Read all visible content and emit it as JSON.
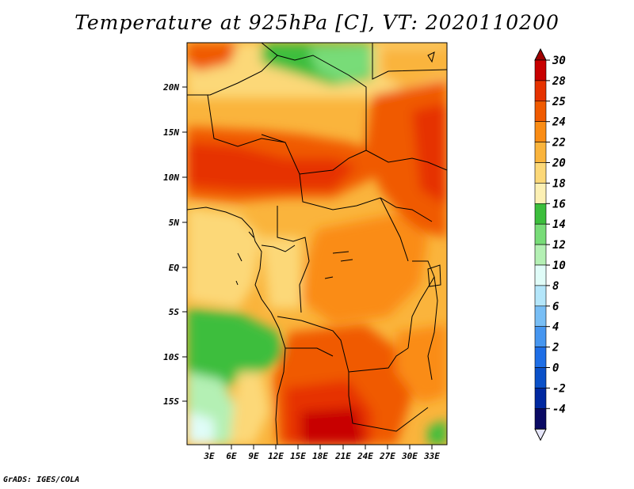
{
  "title": "Temperature at 925hPa [C], VT: 2020110200",
  "credit": "GrADS: IGES/COLA",
  "map": {
    "lat_labels": [
      "20N",
      "15N",
      "10N",
      "5N",
      "EQ",
      "5S",
      "10S",
      "15S"
    ],
    "lon_labels": [
      "3E",
      "6E",
      "9E",
      "12E",
      "15E",
      "18E",
      "21E",
      "24E",
      "27E",
      "30E",
      "33E"
    ],
    "region": "Central and Southern Africa"
  },
  "colorbar": {
    "labels": [
      "30",
      "28",
      "25",
      "24",
      "22",
      "20",
      "18",
      "16",
      "14",
      "12",
      "10",
      "8",
      "6",
      "4",
      "2",
      "0",
      "-2",
      "-4"
    ],
    "colors": [
      "#c80000",
      "#e63200",
      "#f05a00",
      "#fa8c14",
      "#fab43c",
      "#fcd878",
      "#fcf0b4",
      "#3cbe3c",
      "#78dc78",
      "#b4f0b4",
      "#e0fcf8",
      "#b4e6fa",
      "#78bef5",
      "#4696f0",
      "#1e6ee6",
      "#0a50c8",
      "#0028a0",
      "#0a0a64"
    ]
  }
}
